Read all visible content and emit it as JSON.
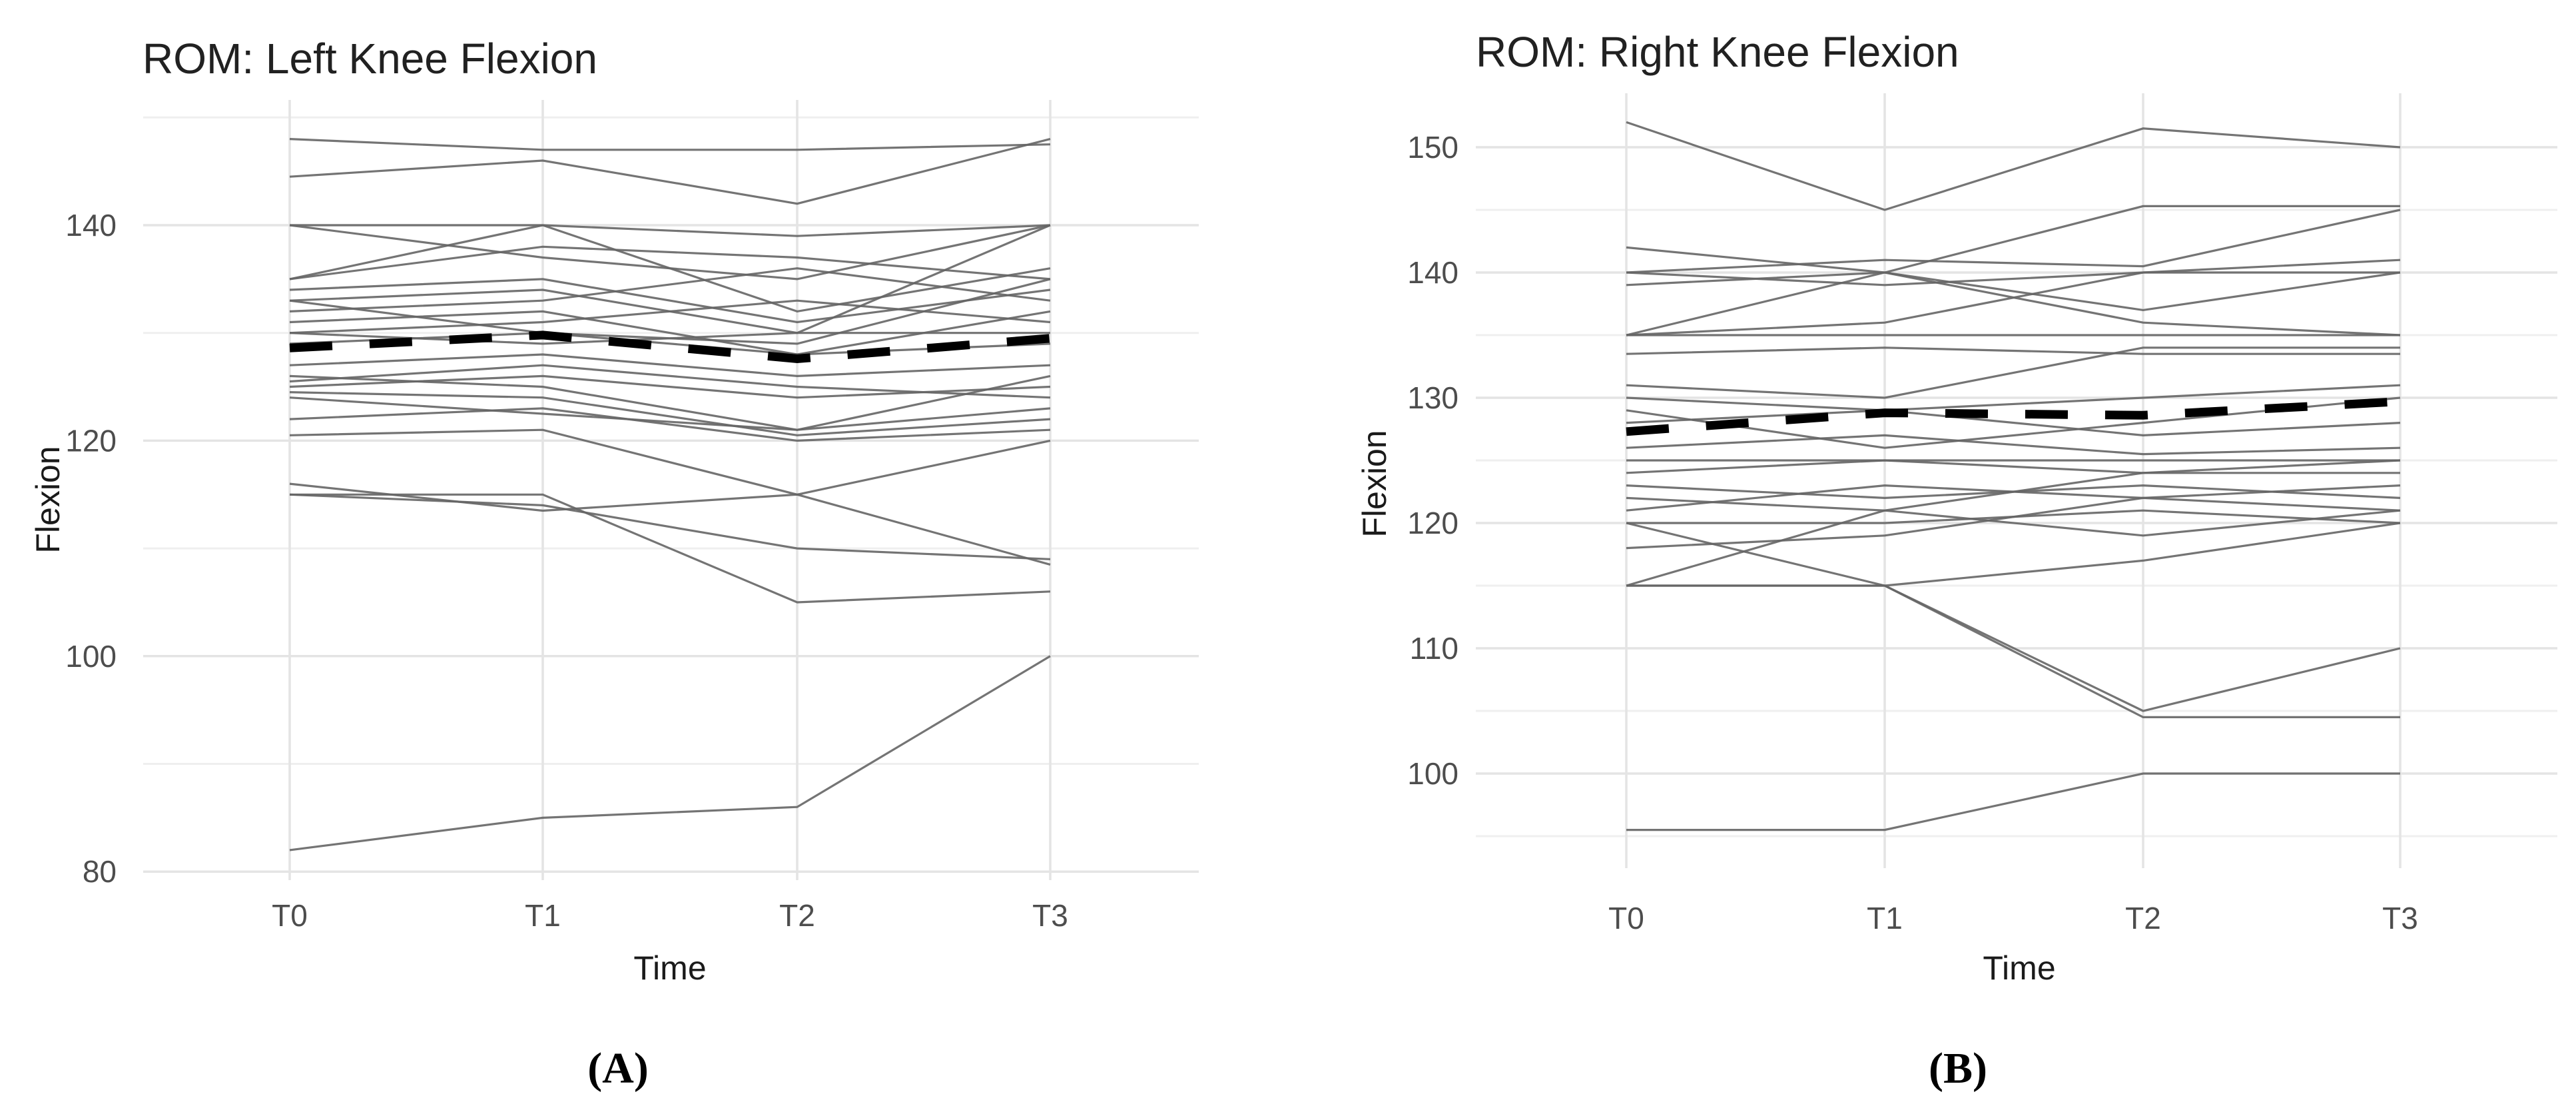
{
  "page": {
    "background": "#ffffff"
  },
  "colors": {
    "subject_line": "#656565",
    "mean_line": "#000000",
    "grid_major": "#e4e4e4",
    "grid_minor": "#efefef",
    "tick_text": "#4d4d4d",
    "axis_title_text": "#1a1a1a",
    "plot_title_text": "#212121",
    "caption_text": "#000000"
  },
  "chart_data": [
    {
      "type": "line",
      "title": "ROM: Left Knee Flexion",
      "xlabel": "Time",
      "ylabel": "Flexion",
      "caption": "(A)",
      "categories": [
        "T0",
        "T1",
        "T2",
        "T3"
      ],
      "y_major_ticks": [
        80,
        100,
        120,
        140
      ],
      "y_minor_ticks": [
        90,
        110,
        130,
        150
      ],
      "ylim": [
        79,
        152
      ],
      "grid": "on",
      "legend": "none",
      "mean_series": {
        "name": "mean",
        "style": "dashed-bold",
        "values": [
          128.6,
          129.8,
          127.6,
          129.5
        ]
      },
      "subject_series": [
        [
          148,
          147,
          147,
          147.5
        ],
        [
          144.5,
          146,
          142,
          148
        ],
        [
          140,
          140,
          139,
          140
        ],
        [
          140,
          137,
          135,
          140
        ],
        [
          135,
          140,
          132,
          136
        ],
        [
          135,
          138,
          137,
          135
        ],
        [
          134,
          135,
          131,
          134
        ],
        [
          133,
          134,
          130,
          140
        ],
        [
          133,
          130,
          129,
          135
        ],
        [
          132,
          133,
          136,
          133
        ],
        [
          131,
          132,
          128,
          132
        ],
        [
          130,
          131,
          133,
          131
        ],
        [
          130,
          129,
          130,
          130
        ],
        [
          129,
          130,
          128,
          129
        ],
        [
          127,
          128,
          126,
          127
        ],
        [
          126,
          125,
          121,
          126
        ],
        [
          125.5,
          127,
          125,
          124
        ],
        [
          125,
          126,
          124,
          125
        ],
        [
          124.5,
          124,
          120.5,
          122
        ],
        [
          124,
          122.5,
          121,
          123
        ],
        [
          122,
          123,
          120,
          121
        ],
        [
          120.5,
          121,
          115,
          120
        ],
        [
          116,
          113.5,
          115,
          108.5
        ],
        [
          115,
          115,
          105,
          106
        ],
        [
          115,
          114,
          110,
          109
        ],
        [
          82,
          85,
          86,
          100
        ]
      ]
    },
    {
      "type": "line",
      "title": "ROM: Right Knee Flexion",
      "xlabel": "Time",
      "ylabel": "Flexion",
      "caption": "(B)",
      "categories": [
        "T0",
        "T1",
        "T2",
        "T3"
      ],
      "y_major_ticks": [
        100,
        110,
        120,
        130,
        140,
        150
      ],
      "y_minor_ticks": [
        95,
        105,
        115,
        125,
        135,
        145
      ],
      "ylim": [
        93,
        154
      ],
      "grid": "on",
      "legend": "none",
      "mean_series": {
        "name": "mean",
        "style": "dashed-bold",
        "values": [
          127.3,
          128.8,
          128.6,
          129.7
        ]
      },
      "subject_series": [
        [
          152,
          145,
          151.5,
          150
        ],
        [
          142,
          140,
          137,
          140
        ],
        [
          140,
          139,
          140,
          140
        ],
        [
          135,
          135,
          135,
          135
        ],
        [
          135,
          140,
          136,
          135
        ],
        [
          140,
          141,
          140.5,
          145
        ],
        [
          139,
          140,
          145.3,
          145.3
        ],
        [
          135,
          136,
          140,
          141
        ],
        [
          133.5,
          134,
          133.5,
          133.5
        ],
        [
          131,
          130,
          134,
          134
        ],
        [
          130,
          129,
          130,
          131
        ],
        [
          129,
          126,
          128,
          130
        ],
        [
          128,
          129,
          127,
          128
        ],
        [
          126,
          127,
          125.5,
          126
        ],
        [
          125,
          125,
          125,
          125
        ],
        [
          124,
          125,
          124,
          124
        ],
        [
          123,
          122,
          123,
          122
        ],
        [
          122,
          121,
          119,
          121
        ],
        [
          121,
          123,
          122,
          121
        ],
        [
          120,
          120,
          121,
          120
        ],
        [
          120,
          115,
          117,
          120
        ],
        [
          118,
          119,
          122,
          123
        ],
        [
          115,
          121,
          124,
          125
        ],
        [
          115,
          115,
          105,
          110
        ],
        [
          115,
          115,
          104.5,
          104.5
        ],
        [
          95.5,
          95.5,
          100,
          100
        ]
      ]
    }
  ]
}
